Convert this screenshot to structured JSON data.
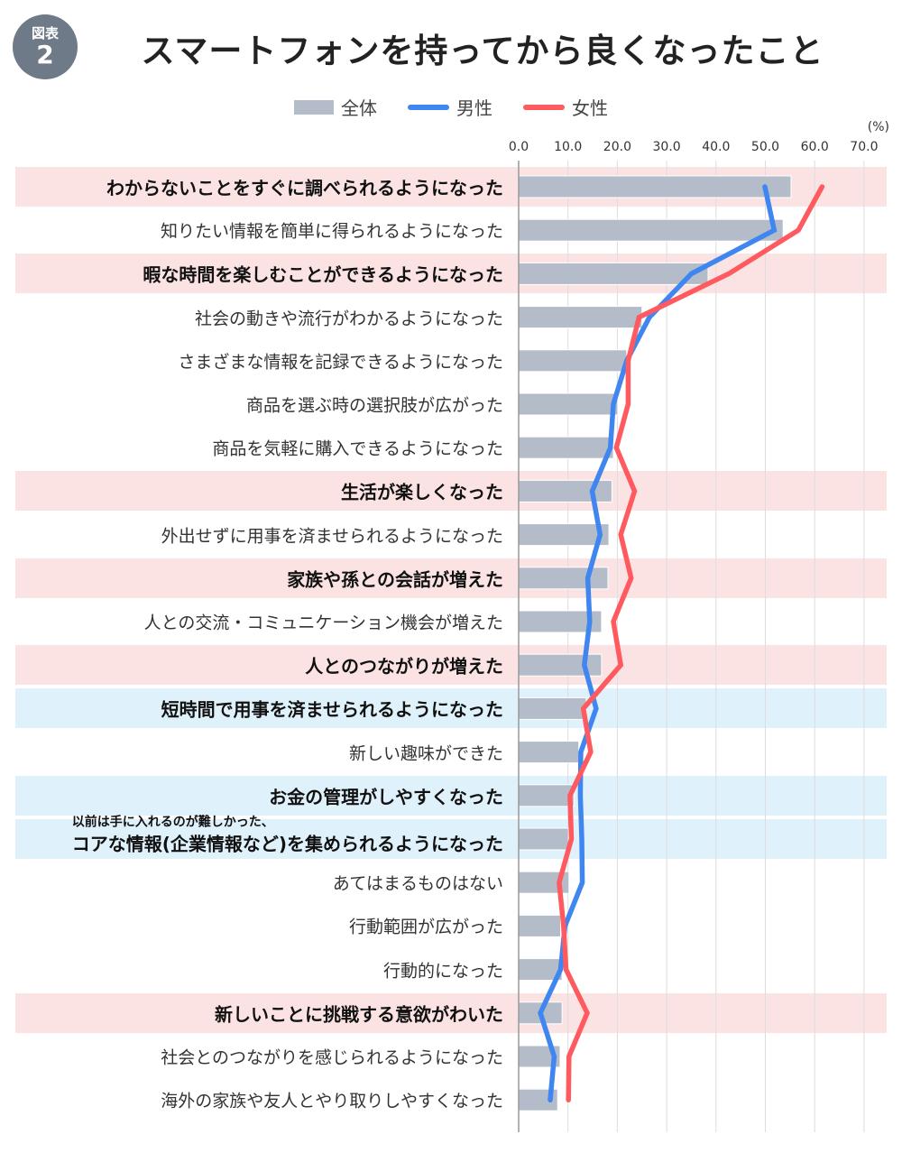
{
  "badge": {
    "label": "図表",
    "number": "2"
  },
  "colors": {
    "all": "#b3bcc8",
    "male": "#3f86f0",
    "female": "#ff5a5f",
    "pink_band": "#fbe3e4",
    "blue_band": "#dff1fa"
  },
  "chart_data": {
    "type": "bar",
    "title": "スマートフォンを持ってから良くなったこと",
    "unit_label": "(%)",
    "xlim": [
      0,
      70
    ],
    "ticks": [
      "0.0",
      "10.0",
      "20.0",
      "30.0",
      "40.0",
      "50.0",
      "60.0",
      "70.0"
    ],
    "legend": [
      {
        "name": "全体",
        "kind": "bar"
      },
      {
        "name": "男性",
        "kind": "line"
      },
      {
        "name": "女性",
        "kind": "line"
      }
    ],
    "legend_placement": "top-center",
    "categories": [
      {
        "label": "わからないことをすぐに調べられるようになった",
        "highlight": "pink"
      },
      {
        "label": "知りたい情報を簡単に得られるようになった",
        "highlight": ""
      },
      {
        "label": "暇な時間を楽しむことができるようになった",
        "highlight": "pink"
      },
      {
        "label": "社会の動きや流行がわかるようになった",
        "highlight": ""
      },
      {
        "label": "さまざまな情報を記録できるようになった",
        "highlight": ""
      },
      {
        "label": "商品を選ぶ時の選択肢が広がった",
        "highlight": ""
      },
      {
        "label": "商品を気軽に購入できるようになった",
        "highlight": ""
      },
      {
        "label": "生活が楽しくなった",
        "highlight": "pink"
      },
      {
        "label": "外出せずに用事を済ませられるようになった",
        "highlight": ""
      },
      {
        "label": "家族や孫との会話が増えた",
        "highlight": "pink"
      },
      {
        "label": "人との交流・コミュニケーション機会が増えた",
        "highlight": ""
      },
      {
        "label": "人とのつながりが増えた",
        "highlight": "pink"
      },
      {
        "label": "短時間で用事を済ませられるようになった",
        "highlight": "blue"
      },
      {
        "label": "新しい趣味ができた",
        "highlight": ""
      },
      {
        "label": "お金の管理がしやすくなった",
        "highlight": "blue"
      },
      {
        "label": "コアな情報(企業情報など)を集められるようになった",
        "sublabel": "以前は手に入れるのが難しかった、",
        "highlight": "blue"
      },
      {
        "label": "あてはまるものはない",
        "highlight": ""
      },
      {
        "label": "行動範囲が広がった",
        "highlight": ""
      },
      {
        "label": "行動的になった",
        "highlight": ""
      },
      {
        "label": "新しいことに挑戦する意欲がわいた",
        "highlight": "pink"
      },
      {
        "label": "社会とのつながりを感じられるようになった",
        "highlight": ""
      },
      {
        "label": "海外の家族や友人とやり取りしやすくなった",
        "highlight": ""
      }
    ],
    "series": [
      {
        "name": "全体",
        "values": [
          55.2,
          53.6,
          38.4,
          25.0,
          21.9,
          20.1,
          19.2,
          18.9,
          18.3,
          18.1,
          16.8,
          16.8,
          13.7,
          12.2,
          11.2,
          10.1,
          10.2,
          8.5,
          8.8,
          8.8,
          8.4,
          7.9
        ]
      },
      {
        "name": "男性",
        "values": [
          49.9,
          51.8,
          35.0,
          26.5,
          21.9,
          19.2,
          18.6,
          14.9,
          16.5,
          14.0,
          14.4,
          13.3,
          15.7,
          12.6,
          12.5,
          12.8,
          12.9,
          9.4,
          8.5,
          4.4,
          7.2,
          6.4
        ]
      },
      {
        "name": "女性",
        "values": [
          61.5,
          56.7,
          42.6,
          24.4,
          22.2,
          22.2,
          19.8,
          23.5,
          20.7,
          22.8,
          19.2,
          20.7,
          13.1,
          14.6,
          10.4,
          10.7,
          8.2,
          9.1,
          9.6,
          13.9,
          10.2,
          10.1
        ]
      }
    ]
  }
}
